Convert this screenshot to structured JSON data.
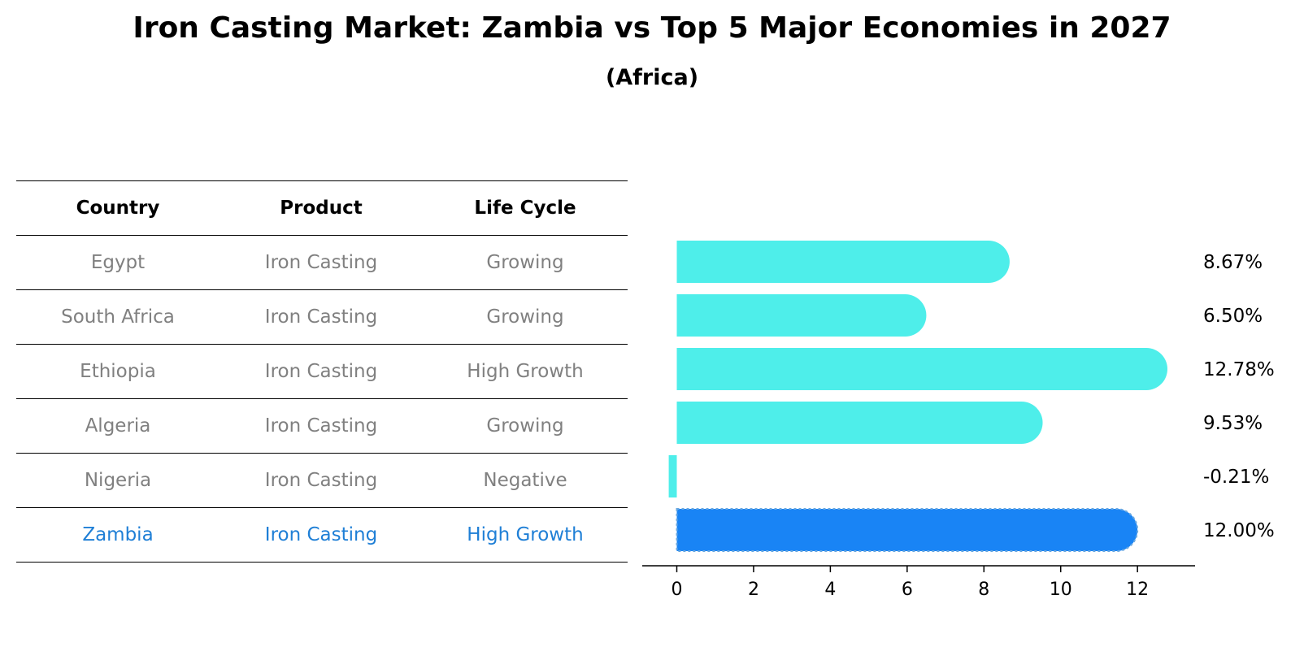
{
  "title": "Iron Casting Market: Zambia vs Top 5 Major Economies in 2027",
  "subtitle": "(Africa)",
  "table": {
    "headers": [
      "Country",
      "Product",
      "Life Cycle"
    ],
    "rows": [
      {
        "country": "Egypt",
        "product": "Iron Casting",
        "life_cycle": "Growing"
      },
      {
        "country": "South Africa",
        "product": "Iron Casting",
        "life_cycle": "Growing"
      },
      {
        "country": "Ethiopia",
        "product": "Iron Casting",
        "life_cycle": "High Growth"
      },
      {
        "country": "Algeria",
        "product": "Iron Casting",
        "life_cycle": "Growing"
      },
      {
        "country": "Nigeria",
        "product": "Iron Casting",
        "life_cycle": "Negative"
      },
      {
        "country": "Zambia",
        "product": "Iron Casting",
        "life_cycle": "High Growth"
      }
    ]
  },
  "chart_data": {
    "type": "bar",
    "orientation": "horizontal",
    "categories": [
      "Egypt",
      "South Africa",
      "Ethiopia",
      "Algeria",
      "Nigeria",
      "Zambia"
    ],
    "values": [
      8.67,
      6.5,
      12.78,
      9.53,
      -0.21,
      12.0
    ],
    "value_labels": [
      "8.67%",
      "6.50%",
      "12.78%",
      "9.53%",
      "-0.21%",
      "12.00%"
    ],
    "xlim": [
      -0.9,
      13.5
    ],
    "xticks": [
      0,
      2,
      4,
      6,
      8,
      10,
      12
    ],
    "grid": false,
    "colors": {
      "default": "#4eeeea",
      "highlight": "#1984f5",
      "highlight_border": "#6aa8e0"
    },
    "highlight_index": 5
  }
}
